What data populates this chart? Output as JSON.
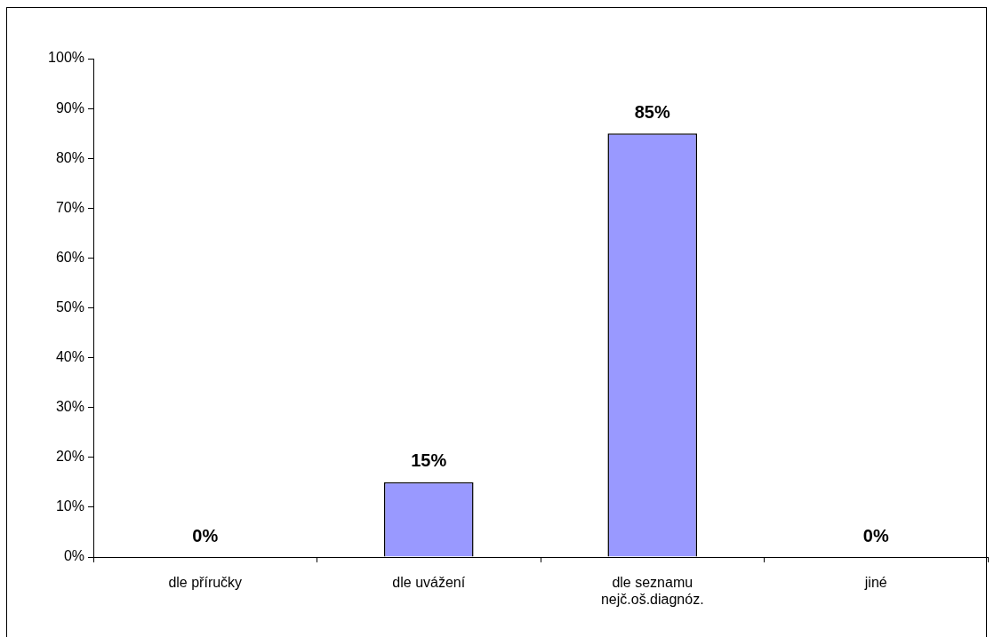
{
  "chart_data": {
    "type": "bar",
    "categories": [
      "dle příručky",
      "dle uvážení",
      "dle seznamu nejč.oš.diagnóz.",
      "jiné"
    ],
    "values": [
      0,
      15,
      85,
      0
    ],
    "value_labels": [
      "0%",
      "15%",
      "85%",
      "0%"
    ],
    "color": "#9999ff",
    "ylim": [
      0,
      100
    ],
    "yticks": [
      {
        "value": 0,
        "label": "0%"
      },
      {
        "value": 10,
        "label": "10%"
      },
      {
        "value": 20,
        "label": "20%"
      },
      {
        "value": 30,
        "label": "30%"
      },
      {
        "value": 40,
        "label": "40%"
      },
      {
        "value": 50,
        "label": "50%"
      },
      {
        "value": 60,
        "label": "60%"
      },
      {
        "value": 70,
        "label": "70%"
      },
      {
        "value": 80,
        "label": "80%"
      },
      {
        "value": 90,
        "label": "90%"
      },
      {
        "value": 100,
        "label": "100%"
      }
    ]
  }
}
